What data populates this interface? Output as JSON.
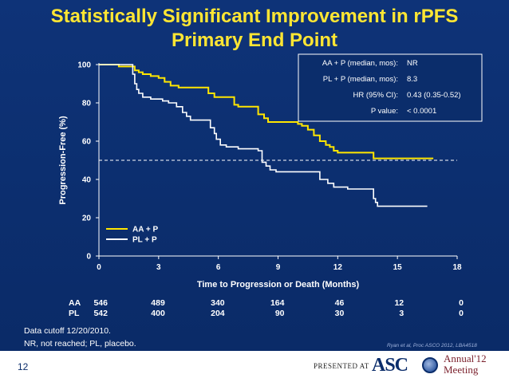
{
  "title": {
    "line1": "Statistically Significant Improvement in rPFS",
    "line2": "Primary End Point"
  },
  "chart_data": {
    "type": "line",
    "subtype": "kaplan-meier",
    "xlabel": "Time to Progression or Death (Months)",
    "ylabel": "Progression-Free (%)",
    "xlim": [
      0,
      18
    ],
    "ylim": [
      0,
      100
    ],
    "xticks": [
      0,
      3,
      6,
      9,
      12,
      15,
      18
    ],
    "yticks": [
      0,
      20,
      40,
      60,
      80,
      100
    ],
    "reference_line": {
      "y": 50,
      "style": "dashed"
    },
    "series": [
      {
        "name": "AA + P",
        "color": "#ffe600",
        "points": [
          [
            0,
            100
          ],
          [
            1.0,
            100
          ],
          [
            1.0,
            99
          ],
          [
            1.6,
            99
          ],
          [
            1.8,
            97
          ],
          [
            2.0,
            96
          ],
          [
            2.2,
            95
          ],
          [
            2.6,
            94
          ],
          [
            3.0,
            93
          ],
          [
            3.3,
            91
          ],
          [
            3.6,
            89
          ],
          [
            4.0,
            88
          ],
          [
            5.3,
            88
          ],
          [
            5.5,
            85
          ],
          [
            5.8,
            83
          ],
          [
            6.5,
            83
          ],
          [
            6.8,
            79
          ],
          [
            7.0,
            78
          ],
          [
            7.8,
            78
          ],
          [
            8.0,
            74
          ],
          [
            8.3,
            72
          ],
          [
            8.5,
            70
          ],
          [
            9.8,
            70
          ],
          [
            10.0,
            69
          ],
          [
            10.2,
            68
          ],
          [
            10.5,
            66
          ],
          [
            10.8,
            63
          ],
          [
            11.1,
            60
          ],
          [
            11.4,
            58
          ],
          [
            11.6,
            57
          ],
          [
            11.8,
            55
          ],
          [
            12.0,
            54
          ],
          [
            13.6,
            54
          ],
          [
            13.8,
            51
          ],
          [
            16.8,
            51
          ]
        ]
      },
      {
        "name": "PL + P",
        "color": "#ffffff",
        "points": [
          [
            0,
            100
          ],
          [
            1.5,
            100
          ],
          [
            1.7,
            95
          ],
          [
            1.8,
            90
          ],
          [
            1.9,
            87
          ],
          [
            2.0,
            85
          ],
          [
            2.2,
            83
          ],
          [
            2.6,
            82
          ],
          [
            3.0,
            82
          ],
          [
            3.2,
            81
          ],
          [
            3.5,
            80
          ],
          [
            3.9,
            78
          ],
          [
            4.2,
            75
          ],
          [
            4.4,
            73
          ],
          [
            4.6,
            71
          ],
          [
            5.5,
            71
          ],
          [
            5.6,
            67
          ],
          [
            5.8,
            64
          ],
          [
            5.9,
            61
          ],
          [
            6.1,
            58
          ],
          [
            6.4,
            57
          ],
          [
            7.0,
            56
          ],
          [
            8.0,
            55
          ],
          [
            8.2,
            53
          ],
          [
            8.2,
            49
          ],
          [
            8.4,
            47
          ],
          [
            8.6,
            45
          ],
          [
            8.9,
            44
          ],
          [
            9.2,
            44
          ],
          [
            10.9,
            44
          ],
          [
            11.1,
            40
          ],
          [
            11.5,
            38
          ],
          [
            11.8,
            36
          ],
          [
            12.5,
            35
          ],
          [
            13.7,
            35
          ],
          [
            13.8,
            30
          ],
          [
            13.9,
            28
          ],
          [
            14.0,
            26
          ],
          [
            16.5,
            26
          ]
        ]
      }
    ],
    "info_box": [
      {
        "label": "AA + P (median, mos):",
        "value": "NR"
      },
      {
        "label": "PL + P (median, mos):",
        "value": "8.3"
      },
      {
        "label": "HR (95% CI):",
        "value": "0.43 (0.35-0.52)"
      },
      {
        "label": "P value:",
        "value": "< 0.0001"
      }
    ],
    "legend": [
      "AA + P",
      "PL + P"
    ],
    "at_risk": {
      "AA": [
        "546",
        "489",
        "340",
        "164",
        "46",
        "12",
        "0"
      ],
      "PL": [
        "542",
        "400",
        "204",
        "90",
        "30",
        "3",
        "0"
      ]
    }
  },
  "at_risk_labels": {
    "aa": "AA",
    "pl": "PL"
  },
  "notes": {
    "cutoff": "Data cutoff 12/20/2010.",
    "abbrev": "NR, not reached; PL, placebo.",
    "citation": "Ryan et al, Proc ASCO 2012, LBA4518"
  },
  "footer": {
    "slide_number": "12",
    "presented_at": "PRESENTED AT",
    "logo_text": "ASC",
    "annual_line1": "Annual'12",
    "annual_line2": "Meeting"
  },
  "colors": {
    "accent": "#ffe633",
    "background": "#0b2d6b"
  }
}
